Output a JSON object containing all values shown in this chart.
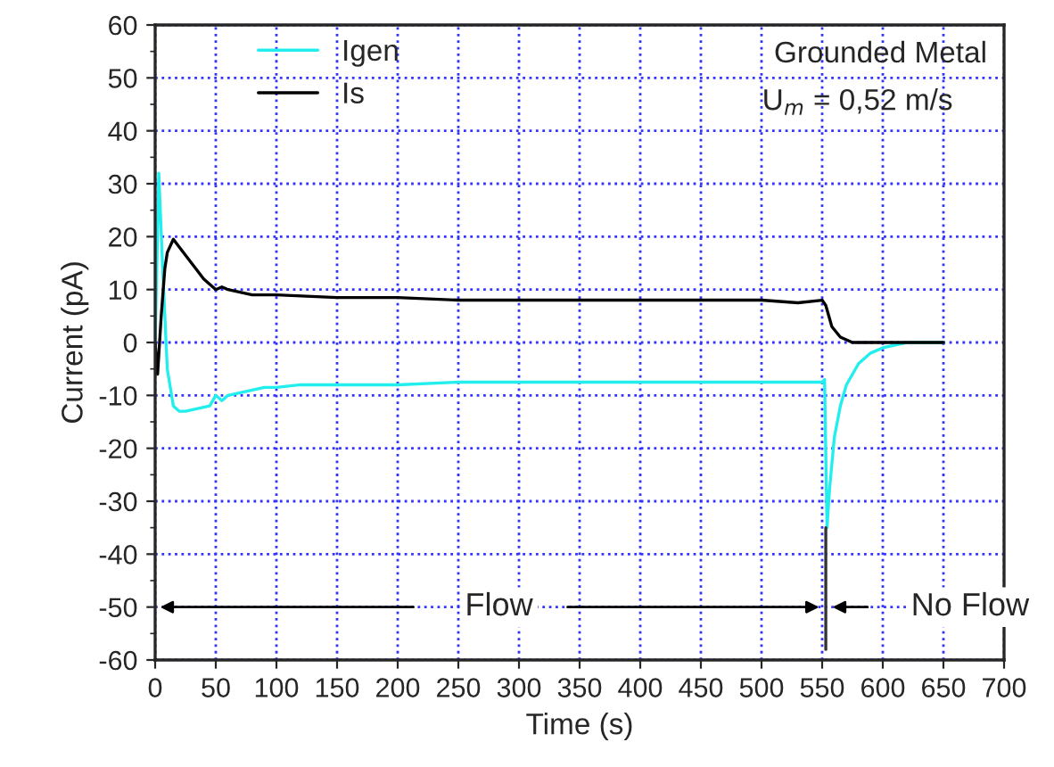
{
  "chart_data": {
    "type": "line",
    "xlabel": "Time (s)",
    "ylabel": "Current (pA)",
    "xlim": [
      0,
      700
    ],
    "ylim": [
      -60,
      60
    ],
    "xticks": [
      0,
      50,
      100,
      150,
      200,
      250,
      300,
      350,
      400,
      450,
      500,
      550,
      600,
      650,
      700
    ],
    "yticks": [
      -60,
      -50,
      -40,
      -30,
      -20,
      -10,
      0,
      10,
      20,
      30,
      40,
      50,
      60
    ],
    "grid": true,
    "legend": "top left",
    "line_style": "solid",
    "marker": "none",
    "series": [
      {
        "name": "Igen",
        "color": "#22eeee",
        "x": [
          0,
          3,
          6,
          10,
          15,
          20,
          25,
          35,
          45,
          50,
          55,
          60,
          70,
          80,
          90,
          100,
          120,
          150,
          180,
          200,
          250,
          300,
          350,
          400,
          450,
          500,
          530,
          550,
          552,
          554,
          556,
          560,
          565,
          570,
          580,
          590,
          600,
          620,
          650
        ],
        "values": [
          0,
          32,
          15,
          -5,
          -12,
          -13,
          -13,
          -12.5,
          -12,
          -10,
          -11,
          -10,
          -9.5,
          -9,
          -8.5,
          -8.5,
          -8,
          -8,
          -8,
          -8,
          -7.5,
          -7.5,
          -7.5,
          -7.5,
          -7.5,
          -7.5,
          -7.5,
          -7.5,
          -7,
          -35,
          -28,
          -18,
          -12,
          -8,
          -4,
          -2,
          -1,
          0,
          0
        ]
      },
      {
        "name": "Is",
        "color": "#000000",
        "x": [
          0,
          2,
          5,
          8,
          10,
          15,
          20,
          30,
          40,
          50,
          55,
          60,
          80,
          100,
          150,
          200,
          250,
          300,
          350,
          400,
          450,
          500,
          530,
          550,
          553,
          558,
          565,
          575,
          600,
          650
        ],
        "values": [
          0,
          -6,
          5,
          14,
          17,
          19.5,
          18,
          15,
          12,
          10,
          10.5,
          10,
          9,
          9,
          8.5,
          8.5,
          8,
          8,
          8,
          8,
          8,
          8,
          7.5,
          8,
          7,
          3,
          1,
          0,
          0,
          0
        ]
      }
    ],
    "annotations": [
      "Grounded Metal",
      "U$_{m}$ = 0,52 m/s",
      "Flow",
      "No Flow"
    ]
  }
}
